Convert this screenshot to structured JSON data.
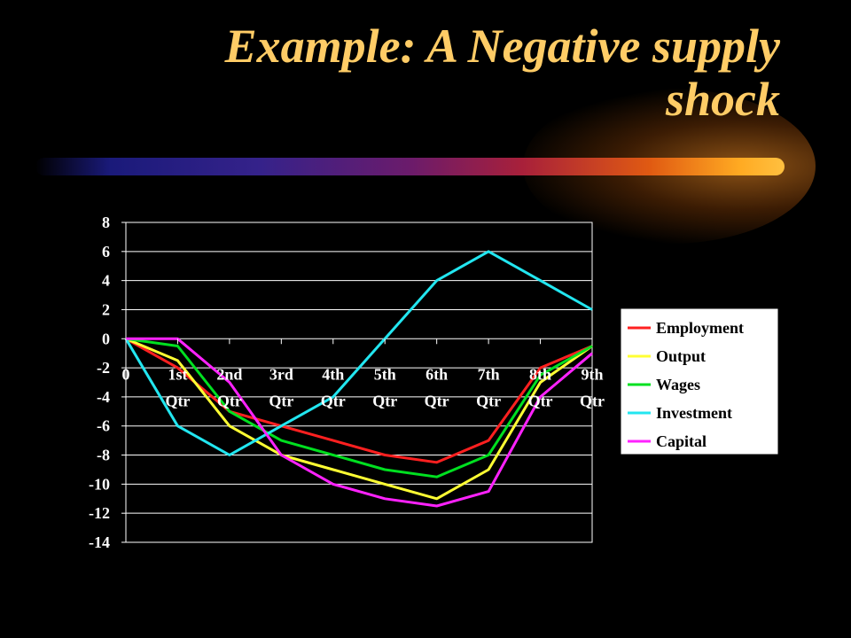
{
  "title_lines": [
    "Example: A Negative supply",
    "shock"
  ],
  "colors": {
    "background": "#000000",
    "title": "#ffcc66",
    "plot_area": "#000000",
    "grid": "#ffffff"
  },
  "chart_data": {
    "type": "line",
    "categories": [
      "0",
      "1st Qtr",
      "2nd Qtr",
      "3rd Qtr",
      "4th Qtr",
      "5th Qtr",
      "6th Qtr",
      "7th Qtr",
      "8th Qtr",
      "9th Qtr"
    ],
    "ylim": [
      -14,
      8
    ],
    "yticks": [
      8,
      6,
      4,
      2,
      0,
      -2,
      -4,
      -6,
      -8,
      -10,
      -12,
      -14
    ],
    "grid": true,
    "legend": "right",
    "series": [
      {
        "name": "Employment",
        "color": "#ff2020",
        "values": [
          0,
          -2,
          -5,
          -6,
          -7,
          -8,
          -8.5,
          -7,
          -2,
          -0.5
        ]
      },
      {
        "name": "Output",
        "color": "#ffff33",
        "values": [
          0,
          -1.5,
          -6,
          -8,
          -9,
          -10,
          -11,
          -9,
          -3,
          -0.5
        ]
      },
      {
        "name": "Wages",
        "color": "#00e020",
        "values": [
          0,
          -0.5,
          -5,
          -7,
          -8,
          -9,
          -9.5,
          -8,
          -2.5,
          -0.5
        ]
      },
      {
        "name": "Investment",
        "color": "#22e6f0",
        "values": [
          0,
          -6,
          -8,
          -6,
          -4,
          0,
          4,
          6,
          4,
          2
        ]
      },
      {
        "name": "Capital",
        "color": "#ff22ff",
        "values": [
          0,
          0,
          -3,
          -8,
          -10,
          -11,
          -11.5,
          -10.5,
          -4,
          -1
        ]
      }
    ]
  }
}
